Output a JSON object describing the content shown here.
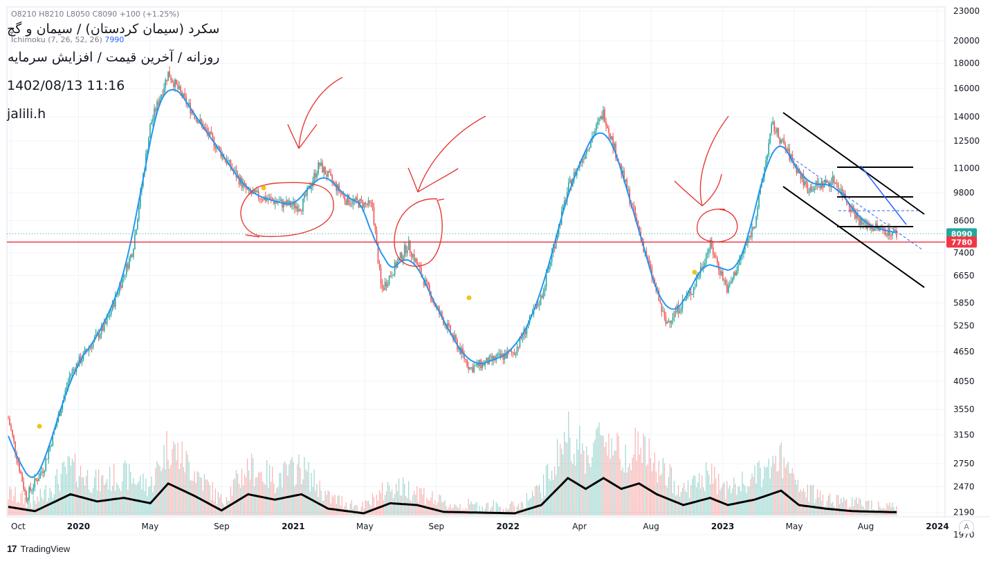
{
  "header": {
    "title_line1": "سکرد (سیمان کردستان) / سیمان و گچ",
    "title_line2": "روزانه / آخرین قیمت / افزایش سرمایه",
    "datetime": "1402/08/13 11:16",
    "author": "jalili.h",
    "ohlc_text": "O8210  H8210  L8050  C8090  +100 (+1.25%)",
    "ichimoku_label": "Ichimoku (7, 26, 52, 26)",
    "ichimoku_value": "7990"
  },
  "footer": {
    "brand": "TradingView",
    "logo": "17",
    "auto_label": "A"
  },
  "colors": {
    "up": "#26a69a",
    "down": "#ef5350",
    "ichimoku": "#2196f3",
    "support": "#f23645",
    "annotation": "#e53935",
    "last_price_tag": "#26a69a"
  },
  "chart_data": {
    "type": "candlestick",
    "y_scale": "log",
    "ylim": [
      2200,
      23000
    ],
    "y_ticks": [
      23000,
      20000,
      18000,
      16000,
      14000,
      12500,
      11000,
      9800,
      8600,
      7400,
      6650,
      5850,
      5250,
      4650,
      4050,
      3550,
      3150,
      2750,
      2470,
      2190,
      1970
    ],
    "x_labels": [
      "Oct",
      "2020",
      "May",
      "Sep",
      "2021",
      "May",
      "Sep",
      "2022",
      "Apr",
      "Aug",
      "2023",
      "May",
      "Aug",
      "2024"
    ],
    "last_price": 8090,
    "support_level": 7780,
    "price_path": [
      {
        "t": 0.0,
        "p": 3400
      },
      {
        "t": 0.02,
        "p": 2350
      },
      {
        "t": 0.04,
        "p": 2700
      },
      {
        "t": 0.07,
        "p": 4200
      },
      {
        "t": 0.11,
        "p": 5300
      },
      {
        "t": 0.14,
        "p": 7500
      },
      {
        "t": 0.16,
        "p": 13500
      },
      {
        "t": 0.18,
        "p": 17200
      },
      {
        "t": 0.2,
        "p": 15000
      },
      {
        "t": 0.24,
        "p": 11800
      },
      {
        "t": 0.27,
        "p": 9800
      },
      {
        "t": 0.31,
        "p": 9300
      },
      {
        "t": 0.33,
        "p": 9200
      },
      {
        "t": 0.35,
        "p": 11200
      },
      {
        "t": 0.38,
        "p": 9500
      },
      {
        "t": 0.41,
        "p": 9200
      },
      {
        "t": 0.42,
        "p": 6200
      },
      {
        "t": 0.45,
        "p": 7700
      },
      {
        "t": 0.48,
        "p": 5800
      },
      {
        "t": 0.52,
        "p": 4300
      },
      {
        "t": 0.57,
        "p": 4650
      },
      {
        "t": 0.6,
        "p": 6000
      },
      {
        "t": 0.63,
        "p": 10000
      },
      {
        "t": 0.67,
        "p": 14300
      },
      {
        "t": 0.7,
        "p": 9500
      },
      {
        "t": 0.74,
        "p": 5300
      },
      {
        "t": 0.77,
        "p": 6200
      },
      {
        "t": 0.79,
        "p": 7700
      },
      {
        "t": 0.81,
        "p": 6200
      },
      {
        "t": 0.84,
        "p": 8500
      },
      {
        "t": 0.86,
        "p": 13500
      },
      {
        "t": 0.9,
        "p": 10000
      },
      {
        "t": 0.93,
        "p": 10400
      },
      {
        "t": 0.96,
        "p": 8500
      },
      {
        "t": 1.0,
        "p": 8090
      }
    ],
    "volume_avg_path": [
      {
        "t": 0.0,
        "v": 0.2
      },
      {
        "t": 0.03,
        "v": 0.08
      },
      {
        "t": 0.07,
        "v": 0.55
      },
      {
        "t": 0.1,
        "v": 0.35
      },
      {
        "t": 0.13,
        "v": 0.45
      },
      {
        "t": 0.16,
        "v": 0.3
      },
      {
        "t": 0.18,
        "v": 0.85
      },
      {
        "t": 0.21,
        "v": 0.5
      },
      {
        "t": 0.24,
        "v": 0.1
      },
      {
        "t": 0.27,
        "v": 0.55
      },
      {
        "t": 0.3,
        "v": 0.4
      },
      {
        "t": 0.33,
        "v": 0.55
      },
      {
        "t": 0.36,
        "v": 0.15
      },
      {
        "t": 0.4,
        "v": 0.02
      },
      {
        "t": 0.43,
        "v": 0.3
      },
      {
        "t": 0.46,
        "v": 0.25
      },
      {
        "t": 0.49,
        "v": 0.06
      },
      {
        "t": 0.57,
        "v": 0.02
      },
      {
        "t": 0.6,
        "v": 0.25
      },
      {
        "t": 0.63,
        "v": 1.0
      },
      {
        "t": 0.65,
        "v": 0.7
      },
      {
        "t": 0.67,
        "v": 1.0
      },
      {
        "t": 0.69,
        "v": 0.7
      },
      {
        "t": 0.71,
        "v": 0.85
      },
      {
        "t": 0.73,
        "v": 0.55
      },
      {
        "t": 0.76,
        "v": 0.25
      },
      {
        "t": 0.79,
        "v": 0.45
      },
      {
        "t": 0.81,
        "v": 0.25
      },
      {
        "t": 0.84,
        "v": 0.4
      },
      {
        "t": 0.87,
        "v": 0.65
      },
      {
        "t": 0.89,
        "v": 0.25
      },
      {
        "t": 0.92,
        "v": 0.15
      },
      {
        "t": 0.95,
        "v": 0.08
      },
      {
        "t": 1.0,
        "v": 0.05
      }
    ]
  }
}
